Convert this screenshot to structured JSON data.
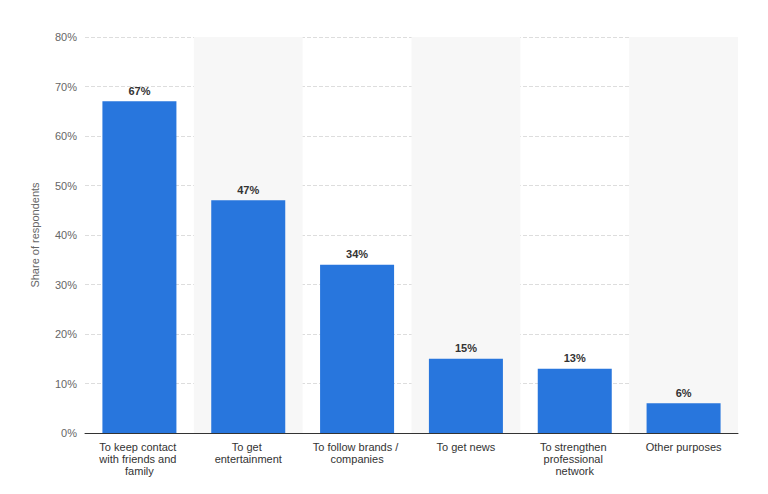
{
  "chart_data": {
    "type": "bar",
    "y_label": "Share of respondents",
    "categories": [
      "To keep contact with friends and family",
      "To get entertainment",
      "To follow brands / companies",
      "To get news",
      "To strengthen professional network",
      "Other purposes"
    ],
    "values": [
      67,
      47,
      34,
      15,
      13,
      6
    ],
    "value_labels": [
      "67%",
      "47%",
      "34%",
      "15%",
      "13%",
      "6%"
    ],
    "color": "#2876dd",
    "ylim": [
      0,
      80
    ],
    "yticks": [
      {
        "value": 0,
        "label": "0%"
      },
      {
        "value": 10,
        "label": "10%"
      },
      {
        "value": 20,
        "label": "20%"
      },
      {
        "value": 30,
        "label": "30%"
      },
      {
        "value": 40,
        "label": "40%"
      },
      {
        "value": 50,
        "label": "50%"
      },
      {
        "value": 60,
        "label": "60%"
      },
      {
        "value": 70,
        "label": "70%"
      },
      {
        "value": 80,
        "label": "80%"
      }
    ],
    "grid": true,
    "data_labels": true
  }
}
